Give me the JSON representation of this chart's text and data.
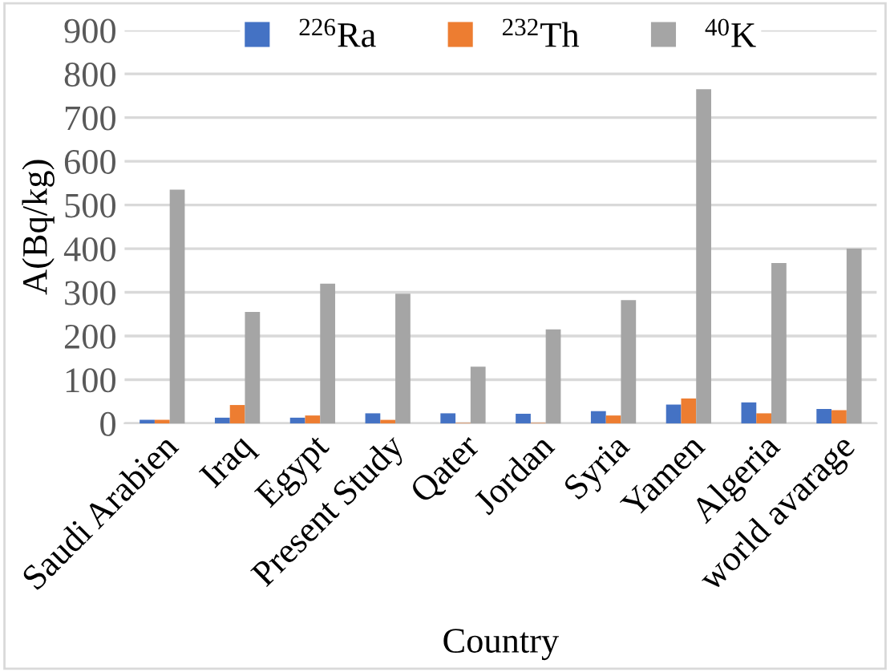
{
  "chart_data": {
    "type": "bar",
    "xlabel": "Country",
    "ylabel": "A(Bq/kg)",
    "categories": [
      "Saudi Arabien",
      "Iraq",
      "Egypt",
      "Present Study",
      "Qater",
      "Jordan",
      "Syria",
      "Yamen",
      "Algeria",
      "world avarage"
    ],
    "series": [
      {
        "name": "$^{226}$Ra",
        "color": "#4472c4",
        "values": [
          8,
          13,
          13,
          23,
          23,
          22,
          28,
          43,
          48,
          33
        ]
      },
      {
        "name": "$^{232}$Th",
        "color": "#ed7d31",
        "values": [
          8,
          42,
          18,
          8,
          1,
          1,
          18,
          57,
          23,
          30
        ]
      },
      {
        "name": "$^{40}$K",
        "color": "#a5a5a5",
        "values": [
          535,
          255,
          320,
          297,
          130,
          215,
          282,
          765,
          367,
          400
        ]
      }
    ],
    "ylim": [
      0,
      900
    ],
    "yticks": [
      0,
      100,
      200,
      300,
      400,
      500,
      600,
      700,
      800,
      900
    ],
    "grid": "y",
    "legend": "top"
  }
}
